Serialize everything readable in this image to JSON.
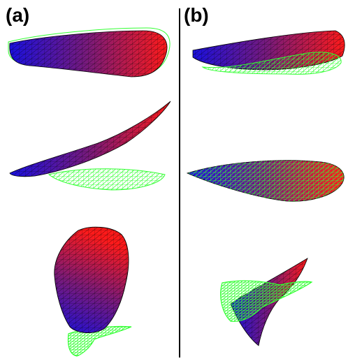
{
  "panels": [
    {
      "label": "(a)"
    },
    {
      "label": "(b)"
    }
  ],
  "colors": {
    "mesh_green": "#33ff33",
    "surface_blue": "#1a10e0",
    "surface_purple": "#7a1a7a",
    "surface_red": "#ff1a1a",
    "divider": "#000000"
  }
}
